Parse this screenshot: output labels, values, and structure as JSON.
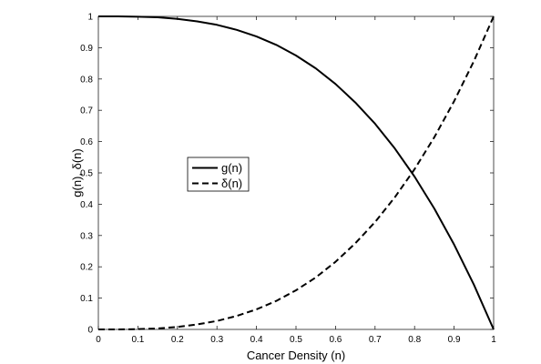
{
  "chart_data": {
    "type": "line",
    "xlabel": "Cancer Density (n)",
    "ylabel": "g(n), δ(n)",
    "xlim": [
      0,
      1
    ],
    "ylim": [
      0,
      1
    ],
    "xticks": [
      "0",
      "0.1",
      "0.2",
      "0.3",
      "0.4",
      "0.5",
      "0.6",
      "0.7",
      "0.8",
      "0.9",
      "1"
    ],
    "yticks": [
      "0",
      "0.1",
      "0.2",
      "0.3",
      "0.4",
      "0.5",
      "0.6",
      "0.7",
      "0.8",
      "0.9",
      "1"
    ],
    "grid": false,
    "legend_placement": "center-left",
    "x": [
      0,
      0.05,
      0.1,
      0.15,
      0.2,
      0.25,
      0.3,
      0.35,
      0.4,
      0.45,
      0.5,
      0.55,
      0.6,
      0.65,
      0.7,
      0.75,
      0.8,
      0.85,
      0.9,
      0.95,
      1
    ],
    "series": [
      {
        "name": "g(n)",
        "style": "solid",
        "color": "#000000",
        "values": [
          1,
          1,
          0.999,
          0.997,
          0.992,
          0.984,
          0.973,
          0.957,
          0.936,
          0.909,
          0.875,
          0.834,
          0.784,
          0.725,
          0.657,
          0.578,
          0.488,
          0.386,
          0.271,
          0.143,
          0
        ]
      },
      {
        "name": "δ(n)",
        "style": "dashed",
        "color": "#000000",
        "values": [
          0,
          0,
          0.001,
          0.003,
          0.008,
          0.016,
          0.027,
          0.043,
          0.064,
          0.091,
          0.125,
          0.166,
          0.216,
          0.275,
          0.343,
          0.422,
          0.512,
          0.614,
          0.729,
          0.857,
          1
        ]
      }
    ]
  }
}
